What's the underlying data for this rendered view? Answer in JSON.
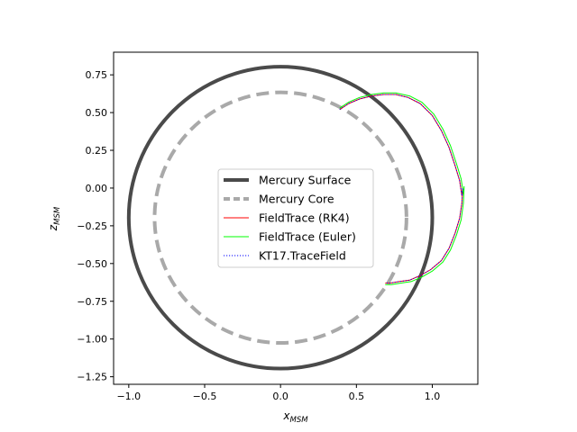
{
  "chart_data": {
    "type": "line",
    "title": "",
    "xlabel": "x",
    "xlabel_sub": "MSM",
    "ylabel": "z",
    "ylabel_sub": "MSM",
    "xlim": [
      -1.1,
      1.3
    ],
    "ylim": [
      -1.3,
      0.9
    ],
    "aspect": "equal",
    "grid": false,
    "legend_position": "center",
    "x_ticks": [
      -1.0,
      -0.5,
      0.0,
      0.5,
      1.0
    ],
    "x_tick_labels": [
      "−1.0",
      "−0.5",
      "0.0",
      "0.5",
      "1.0"
    ],
    "y_ticks": [
      0.75,
      0.5,
      0.25,
      0.0,
      -0.25,
      -0.5,
      -0.75,
      -1.0,
      -1.25
    ],
    "y_tick_labels": [
      "0.75",
      "0.50",
      "0.25",
      "0.00",
      "−0.25",
      "−0.50",
      "−0.75",
      "−1.00",
      "−1.25"
    ],
    "series": [
      {
        "name": "Mercury Surface",
        "kind": "circle",
        "center": [
          0.0,
          -0.196
        ],
        "radius": 1.0,
        "color": "#4a4a4a",
        "style": "solid"
      },
      {
        "name": "Mercury Core",
        "kind": "circle",
        "center": [
          0.0,
          -0.196
        ],
        "radius": 0.83,
        "color": "#a9a9a9",
        "style": "dashed"
      },
      {
        "name": "FieldTrace (RK4)",
        "kind": "line",
        "color": "#ff0000",
        "style": "solid",
        "x": [
          0.39,
          0.45,
          0.52,
          0.6,
          0.68,
          0.76,
          0.84,
          0.92,
          1.0,
          1.06,
          1.11,
          1.15,
          1.18,
          1.195,
          1.2,
          1.195,
          1.18,
          1.15,
          1.11,
          1.06,
          0.99,
          0.92,
          0.85,
          0.78,
          0.72,
          0.69
        ],
        "y": [
          0.52,
          0.56,
          0.59,
          0.61,
          0.62,
          0.62,
          0.6,
          0.56,
          0.48,
          0.38,
          0.27,
          0.15,
          0.05,
          -0.05,
          0.0,
          -0.1,
          -0.2,
          -0.3,
          -0.4,
          -0.48,
          -0.54,
          -0.58,
          -0.61,
          -0.62,
          -0.63,
          -0.63
        ]
      },
      {
        "name": "FieldTrace (Euler)",
        "kind": "line",
        "color": "#00ff00",
        "style": "solid",
        "x": [
          0.39,
          0.45,
          0.52,
          0.6,
          0.68,
          0.76,
          0.85,
          0.93,
          1.01,
          1.07,
          1.12,
          1.16,
          1.19,
          1.205,
          1.21,
          1.205,
          1.19,
          1.16,
          1.12,
          1.07,
          1.0,
          0.93,
          0.86,
          0.79,
          0.73,
          0.69
        ],
        "y": [
          0.53,
          0.57,
          0.6,
          0.62,
          0.63,
          0.63,
          0.61,
          0.57,
          0.49,
          0.39,
          0.28,
          0.16,
          0.06,
          -0.04,
          0.01,
          -0.1,
          -0.21,
          -0.31,
          -0.41,
          -0.49,
          -0.55,
          -0.59,
          -0.62,
          -0.63,
          -0.64,
          -0.64
        ]
      },
      {
        "name": "KT17.TraceField",
        "kind": "line",
        "color": "#0000ff",
        "style": "dotted",
        "x": [
          0.39,
          0.45,
          0.52,
          0.6,
          0.68,
          0.76,
          0.84,
          0.92,
          1.0,
          1.06,
          1.11,
          1.15,
          1.18,
          1.195,
          1.2,
          1.195,
          1.18,
          1.15,
          1.11,
          1.06,
          0.99,
          0.92,
          0.85,
          0.78,
          0.72,
          0.69
        ],
        "y": [
          0.52,
          0.56,
          0.59,
          0.61,
          0.62,
          0.62,
          0.6,
          0.56,
          0.48,
          0.38,
          0.27,
          0.15,
          0.05,
          -0.05,
          0.0,
          -0.1,
          -0.2,
          -0.3,
          -0.4,
          -0.48,
          -0.54,
          -0.58,
          -0.61,
          -0.62,
          -0.63,
          -0.63
        ]
      }
    ]
  }
}
